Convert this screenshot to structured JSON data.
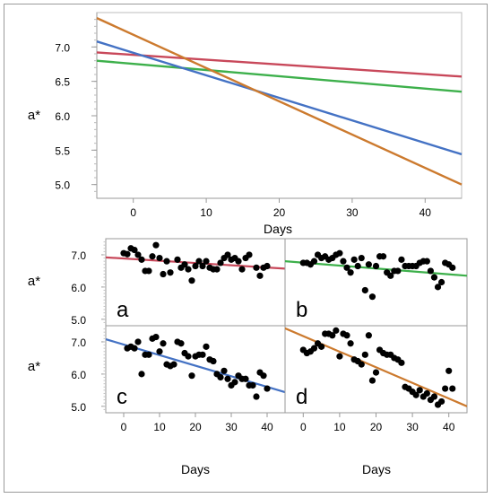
{
  "chart_data": [
    {
      "type": "line",
      "title": "",
      "xlabel": "Days",
      "ylabel": "a*",
      "xlim": [
        -5,
        45
      ],
      "ylim": [
        4.8,
        7.5
      ],
      "xticks": [
        0,
        10,
        20,
        30,
        40
      ],
      "yticks": [
        5.0,
        5.5,
        6.0,
        6.5,
        7.0
      ],
      "ytick_labels": [
        "5.0",
        "5.5",
        "6.0",
        "6.5",
        "7.0"
      ],
      "grid": false,
      "series": [
        {
          "color": "#c8485a",
          "x": [
            -5,
            45
          ],
          "y": [
            6.92,
            6.57
          ]
        },
        {
          "color": "#3db04b",
          "x": [
            -5,
            45
          ],
          "y": [
            6.8,
            6.35
          ]
        },
        {
          "color": "#4472c4",
          "x": [
            -5,
            45
          ],
          "y": [
            7.08,
            5.44
          ]
        },
        {
          "color": "#cc7a2e",
          "x": [
            -5,
            45
          ],
          "y": [
            7.42,
            5.0
          ]
        }
      ]
    },
    {
      "type": "scatter",
      "panel_label": "a",
      "xlabel": "Days",
      "ylabel": "a*",
      "xlim": [
        -5,
        45
      ],
      "ylim": [
        4.8,
        7.5
      ],
      "xticks": [
        0,
        10,
        20,
        30,
        40
      ],
      "yticks": [
        5.0,
        6.0,
        7.0
      ],
      "ytick_labels": [
        "5.0",
        "6.0",
        "7.0"
      ],
      "fit_line": {
        "color": "#c8485a",
        "x": [
          -5,
          45
        ],
        "y": [
          6.92,
          6.57
        ]
      },
      "points": [
        [
          0,
          7.05
        ],
        [
          1,
          7.02
        ],
        [
          2,
          7.2
        ],
        [
          3,
          7.15
        ],
        [
          4,
          7.0
        ],
        [
          5,
          6.85
        ],
        [
          6,
          6.5
        ],
        [
          7,
          6.5
        ],
        [
          8,
          6.95
        ],
        [
          9,
          7.3
        ],
        [
          10,
          6.9
        ],
        [
          11,
          6.4
        ],
        [
          12,
          6.8
        ],
        [
          13,
          6.45
        ],
        [
          15,
          6.85
        ],
        [
          16,
          6.6
        ],
        [
          17,
          6.7
        ],
        [
          18,
          6.55
        ],
        [
          19,
          6.2
        ],
        [
          20,
          6.65
        ],
        [
          21,
          6.8
        ],
        [
          22,
          6.65
        ],
        [
          23,
          6.8
        ],
        [
          24,
          6.6
        ],
        [
          25,
          6.55
        ],
        [
          26,
          6.55
        ],
        [
          27,
          6.75
        ],
        [
          28,
          6.9
        ],
        [
          29,
          7.0
        ],
        [
          30,
          6.85
        ],
        [
          31,
          6.9
        ],
        [
          32,
          6.8
        ],
        [
          33,
          6.55
        ],
        [
          34,
          6.9
        ],
        [
          35,
          7.0
        ],
        [
          37,
          6.6
        ],
        [
          38,
          6.35
        ],
        [
          39,
          6.6
        ],
        [
          40,
          6.65
        ]
      ]
    },
    {
      "type": "scatter",
      "panel_label": "b",
      "xlabel": "Days",
      "ylabel": "a*",
      "xlim": [
        -5,
        45
      ],
      "ylim": [
        4.8,
        7.5
      ],
      "xticks": [
        0,
        10,
        20,
        30,
        40
      ],
      "yticks": [
        5.0,
        6.0,
        7.0
      ],
      "ytick_labels": [
        "5.0",
        "6.0",
        "7.0"
      ],
      "fit_line": {
        "color": "#3db04b",
        "x": [
          -5,
          45
        ],
        "y": [
          6.8,
          6.35
        ]
      },
      "points": [
        [
          0,
          6.75
        ],
        [
          1,
          6.75
        ],
        [
          2,
          6.7
        ],
        [
          3,
          6.8
        ],
        [
          4,
          7.0
        ],
        [
          5,
          6.9
        ],
        [
          6,
          6.95
        ],
        [
          7,
          6.85
        ],
        [
          8,
          6.9
        ],
        [
          9,
          7.0
        ],
        [
          10,
          7.05
        ],
        [
          11,
          6.8
        ],
        [
          12,
          6.6
        ],
        [
          13,
          6.45
        ],
        [
          14,
          6.85
        ],
        [
          15,
          6.65
        ],
        [
          16,
          6.9
        ],
        [
          17,
          5.9
        ],
        [
          18,
          6.7
        ],
        [
          19,
          5.7
        ],
        [
          20,
          6.65
        ],
        [
          21,
          6.95
        ],
        [
          22,
          6.95
        ],
        [
          23,
          6.45
        ],
        [
          24,
          6.35
        ],
        [
          25,
          6.5
        ],
        [
          26,
          6.5
        ],
        [
          27,
          6.85
        ],
        [
          28,
          6.65
        ],
        [
          29,
          6.65
        ],
        [
          30,
          6.65
        ],
        [
          31,
          6.65
        ],
        [
          32,
          6.75
        ],
        [
          33,
          6.8
        ],
        [
          34,
          6.8
        ],
        [
          35,
          6.5
        ],
        [
          36,
          6.3
        ],
        [
          37,
          6.0
        ],
        [
          38,
          6.15
        ],
        [
          39,
          6.75
        ],
        [
          40,
          6.7
        ],
        [
          41,
          6.6
        ]
      ]
    },
    {
      "type": "scatter",
      "panel_label": "c",
      "xlabel": "Days",
      "ylabel": "a*",
      "xlim": [
        -5,
        45
      ],
      "ylim": [
        4.8,
        7.5
      ],
      "xticks": [
        0,
        10,
        20,
        30,
        40
      ],
      "yticks": [
        5.0,
        6.0,
        7.0
      ],
      "ytick_labels": [
        "5.0",
        "6.0",
        "7.0"
      ],
      "fit_line": {
        "color": "#4472c4",
        "x": [
          -5,
          45
        ],
        "y": [
          7.08,
          5.44
        ]
      },
      "points": [
        [
          1,
          6.8
        ],
        [
          2,
          6.85
        ],
        [
          3,
          6.8
        ],
        [
          4,
          7.0
        ],
        [
          5,
          6.0
        ],
        [
          6,
          6.6
        ],
        [
          7,
          6.6
        ],
        [
          8,
          7.1
        ],
        [
          9,
          7.15
        ],
        [
          10,
          6.7
        ],
        [
          11,
          6.95
        ],
        [
          12,
          6.3
        ],
        [
          13,
          6.25
        ],
        [
          14,
          6.3
        ],
        [
          15,
          7.0
        ],
        [
          16,
          6.95
        ],
        [
          17,
          6.65
        ],
        [
          18,
          6.55
        ],
        [
          19,
          5.95
        ],
        [
          20,
          6.55
        ],
        [
          21,
          6.6
        ],
        [
          22,
          6.6
        ],
        [
          23,
          6.85
        ],
        [
          24,
          6.45
        ],
        [
          25,
          6.4
        ],
        [
          26,
          6.0
        ],
        [
          27,
          5.9
        ],
        [
          28,
          6.1
        ],
        [
          29,
          5.85
        ],
        [
          30,
          5.65
        ],
        [
          31,
          5.75
        ],
        [
          32,
          5.95
        ],
        [
          33,
          5.85
        ],
        [
          34,
          5.85
        ],
        [
          35,
          5.65
        ],
        [
          36,
          5.65
        ],
        [
          37,
          5.3
        ],
        [
          38,
          6.05
        ],
        [
          39,
          5.95
        ],
        [
          40,
          5.55
        ]
      ]
    },
    {
      "type": "scatter",
      "panel_label": "d",
      "xlabel": "Days",
      "ylabel": "a*",
      "xlim": [
        -5,
        45
      ],
      "ylim": [
        4.8,
        7.5
      ],
      "xticks": [
        0,
        10,
        20,
        30,
        40
      ],
      "yticks": [
        5.0,
        6.0,
        7.0
      ],
      "ytick_labels": [
        "5.0",
        "6.0",
        "7.0"
      ],
      "fit_line": {
        "color": "#cc7a2e",
        "x": [
          -5,
          45
        ],
        "y": [
          7.42,
          5.0
        ]
      },
      "points": [
        [
          0,
          6.75
        ],
        [
          1,
          6.65
        ],
        [
          2,
          6.7
        ],
        [
          3,
          6.8
        ],
        [
          4,
          6.95
        ],
        [
          5,
          6.85
        ],
        [
          6,
          7.25
        ],
        [
          7,
          7.25
        ],
        [
          8,
          7.2
        ],
        [
          9,
          7.35
        ],
        [
          10,
          6.55
        ],
        [
          11,
          7.25
        ],
        [
          12,
          7.2
        ],
        [
          13,
          6.95
        ],
        [
          14,
          6.45
        ],
        [
          15,
          6.4
        ],
        [
          16,
          6.3
        ],
        [
          17,
          6.6
        ],
        [
          18,
          7.2
        ],
        [
          19,
          5.8
        ],
        [
          20,
          6.05
        ],
        [
          21,
          6.75
        ],
        [
          22,
          6.65
        ],
        [
          23,
          6.6
        ],
        [
          24,
          6.6
        ],
        [
          25,
          6.5
        ],
        [
          26,
          6.45
        ],
        [
          27,
          6.35
        ],
        [
          28,
          5.6
        ],
        [
          29,
          5.55
        ],
        [
          30,
          5.45
        ],
        [
          31,
          5.35
        ],
        [
          32,
          5.5
        ],
        [
          33,
          5.3
        ],
        [
          34,
          5.4
        ],
        [
          35,
          5.2
        ],
        [
          36,
          5.3
        ],
        [
          37,
          5.05
        ],
        [
          38,
          5.15
        ],
        [
          39,
          5.55
        ],
        [
          40,
          6.1
        ],
        [
          41,
          5.55
        ]
      ]
    }
  ]
}
